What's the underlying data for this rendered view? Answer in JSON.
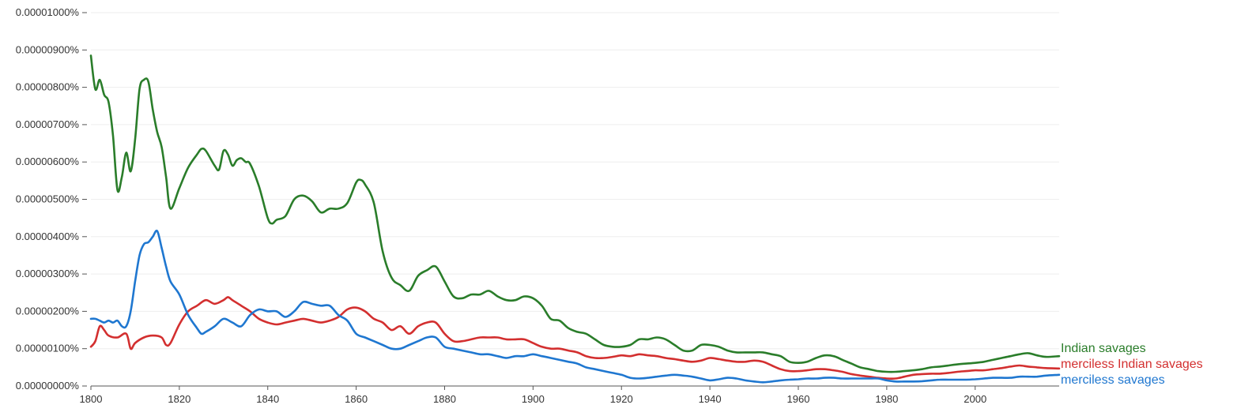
{
  "colors": {
    "indian_savages": "#2a7d2a",
    "merciless_indian_savages": "#d32f2f",
    "merciless_savages": "#1f77d0",
    "axis_text": "#333333",
    "grid": "#eeeeee"
  },
  "chart_data": {
    "type": "line",
    "title": "",
    "xlabel": "",
    "ylabel": "",
    "xlim": [
      1800,
      2019
    ],
    "ylim": [
      0,
      1e-05
    ],
    "grid": true,
    "legend": "right-end",
    "x_ticks": [
      "1800",
      "1820",
      "1840",
      "1860",
      "1880",
      "1900",
      "1920",
      "1940",
      "1960",
      "1980",
      "2000"
    ],
    "x_tick_values": [
      1800,
      1820,
      1840,
      1860,
      1880,
      1900,
      1920,
      1940,
      1960,
      1980,
      2000
    ],
    "y_ticks": [
      "0.00000000%",
      "0.00000100%",
      "0.00000200%",
      "0.00000300%",
      "0.00000400%",
      "0.00000500%",
      "0.00000600%",
      "0.00000700%",
      "0.00000800%",
      "0.00000900%",
      "0.00001000%"
    ],
    "y_tick_values": [
      0,
      1e-06,
      2e-06,
      3e-06,
      4e-06,
      5e-06,
      6e-06,
      7e-06,
      8e-06,
      9e-06,
      1e-05
    ],
    "series": [
      {
        "name": "Indian savages",
        "color": "#2a7d2a",
        "x": [
          1800,
          1801,
          1802,
          1803,
          1804,
          1805,
          1806,
          1807,
          1808,
          1809,
          1810,
          1811,
          1812,
          1813,
          1814,
          1815,
          1816,
          1817,
          1818,
          1820,
          1822,
          1824,
          1825,
          1826,
          1828,
          1829,
          1830,
          1831,
          1832,
          1833,
          1834,
          1835,
          1836,
          1838,
          1840,
          1841,
          1842,
          1844,
          1846,
          1848,
          1850,
          1852,
          1854,
          1856,
          1858,
          1860,
          1861,
          1862,
          1864,
          1866,
          1868,
          1870,
          1872,
          1874,
          1876,
          1878,
          1880,
          1882,
          1884,
          1886,
          1888,
          1890,
          1892,
          1894,
          1896,
          1898,
          1900,
          1902,
          1904,
          1906,
          1908,
          1910,
          1912,
          1914,
          1916,
          1918,
          1920,
          1922,
          1924,
          1926,
          1928,
          1930,
          1932,
          1934,
          1936,
          1938,
          1940,
          1942,
          1944,
          1946,
          1948,
          1950,
          1952,
          1954,
          1956,
          1958,
          1960,
          1962,
          1964,
          1966,
          1968,
          1970,
          1972,
          1974,
          1976,
          1978,
          1980,
          1982,
          1984,
          1986,
          1988,
          1990,
          1992,
          1994,
          1996,
          1998,
          2000,
          2002,
          2004,
          2006,
          2008,
          2010,
          2012,
          2014,
          2016,
          2019
        ],
        "y": [
          8.85e-06,
          7.95e-06,
          8.2e-06,
          7.8e-06,
          7.6e-06,
          6.7e-06,
          5.25e-06,
          5.6e-06,
          6.25e-06,
          5.75e-06,
          6.6e-06,
          7.95e-06,
          8.2e-06,
          8.15e-06,
          7.4e-06,
          6.8e-06,
          6.4e-06,
          5.6e-06,
          4.75e-06,
          5.3e-06,
          5.85e-06,
          6.2e-06,
          6.35e-06,
          6.3e-06,
          5.9e-06,
          5.8e-06,
          6.3e-06,
          6.2e-06,
          5.9e-06,
          6.05e-06,
          6.1e-06,
          6e-06,
          5.95e-06,
          5.35e-06,
          4.5e-06,
          4.35e-06,
          4.45e-06,
          4.55e-06,
          5e-06,
          5.1e-06,
          4.95e-06,
          4.65e-06,
          4.75e-06,
          4.75e-06,
          4.9e-06,
          5.45e-06,
          5.52e-06,
          5.4e-06,
          4.9e-06,
          3.6e-06,
          2.9e-06,
          2.7e-06,
          2.55e-06,
          2.95e-06,
          3.1e-06,
          3.2e-06,
          2.8e-06,
          2.4e-06,
          2.35e-06,
          2.45e-06,
          2.45e-06,
          2.55e-06,
          2.4e-06,
          2.3e-06,
          2.3e-06,
          2.4e-06,
          2.35e-06,
          2.15e-06,
          1.8e-06,
          1.75e-06,
          1.55e-06,
          1.45e-06,
          1.4e-06,
          1.25e-06,
          1.1e-06,
          1.05e-06,
          1.05e-06,
          1.1e-06,
          1.25e-06,
          1.25e-06,
          1.3e-06,
          1.25e-06,
          1.1e-06,
          9.5e-07,
          9.5e-07,
          1.1e-06,
          1.1e-06,
          1.05e-06,
          9.5e-07,
          9e-07,
          9e-07,
          9e-07,
          9e-07,
          8.5e-07,
          8e-07,
          6.5e-07,
          6.2e-07,
          6.5e-07,
          7.5e-07,
          8.2e-07,
          8e-07,
          7e-07,
          6e-07,
          5e-07,
          4.5e-07,
          4e-07,
          3.8e-07,
          3.8e-07,
          4e-07,
          4.2e-07,
          4.5e-07,
          5e-07,
          5.2e-07,
          5.5e-07,
          5.8e-07,
          6e-07,
          6.2e-07,
          6.5e-07,
          7e-07,
          7.5e-07,
          8e-07,
          8.5e-07,
          8.8e-07,
          8.2e-07,
          7.8e-07,
          8e-07
        ]
      },
      {
        "name": "merciless Indian savages",
        "color": "#d32f2f",
        "x": [
          1800,
          1801,
          1802,
          1803,
          1804,
          1806,
          1808,
          1809,
          1810,
          1812,
          1814,
          1816,
          1817,
          1818,
          1820,
          1822,
          1824,
          1826,
          1828,
          1830,
          1831,
          1832,
          1834,
          1836,
          1838,
          1840,
          1842,
          1844,
          1846,
          1848,
          1850,
          1852,
          1854,
          1856,
          1858,
          1860,
          1862,
          1864,
          1866,
          1868,
          1870,
          1872,
          1874,
          1876,
          1878,
          1880,
          1882,
          1884,
          1886,
          1888,
          1890,
          1892,
          1894,
          1896,
          1898,
          1900,
          1902,
          1904,
          1906,
          1908,
          1910,
          1912,
          1914,
          1916,
          1918,
          1920,
          1922,
          1924,
          1926,
          1928,
          1930,
          1932,
          1934,
          1936,
          1938,
          1940,
          1942,
          1944,
          1946,
          1948,
          1950,
          1952,
          1954,
          1956,
          1958,
          1960,
          1962,
          1964,
          1966,
          1968,
          1970,
          1972,
          1974,
          1976,
          1978,
          1980,
          1982,
          1984,
          1986,
          1988,
          1990,
          1992,
          1994,
          1996,
          1998,
          2000,
          2002,
          2004,
          2006,
          2008,
          2010,
          2012,
          2014,
          2016,
          2019
        ],
        "y": [
          1.05e-06,
          1.2e-06,
          1.6e-06,
          1.5e-06,
          1.35e-06,
          1.3e-06,
          1.4e-06,
          1e-06,
          1.15e-06,
          1.3e-06,
          1.35e-06,
          1.3e-06,
          1.1e-06,
          1.15e-06,
          1.65e-06,
          2e-06,
          2.15e-06,
          2.3e-06,
          2.2e-06,
          2.3e-06,
          2.38e-06,
          2.3e-06,
          2.15e-06,
          2e-06,
          1.8e-06,
          1.7e-06,
          1.65e-06,
          1.7e-06,
          1.75e-06,
          1.8e-06,
          1.75e-06,
          1.7e-06,
          1.75e-06,
          1.85e-06,
          2.05e-06,
          2.1e-06,
          2e-06,
          1.8e-06,
          1.7e-06,
          1.5e-06,
          1.6e-06,
          1.4e-06,
          1.6e-06,
          1.7e-06,
          1.7e-06,
          1.4e-06,
          1.2e-06,
          1.2e-06,
          1.25e-06,
          1.3e-06,
          1.3e-06,
          1.3e-06,
          1.25e-06,
          1.25e-06,
          1.25e-06,
          1.15e-06,
          1.05e-06,
          1e-06,
          1e-06,
          9.5e-07,
          9e-07,
          8e-07,
          7.5e-07,
          7.5e-07,
          7.8e-07,
          8.2e-07,
          8e-07,
          8.5e-07,
          8.2e-07,
          8e-07,
          7.5e-07,
          7.2e-07,
          6.8e-07,
          6.5e-07,
          6.8e-07,
          7.5e-07,
          7.2e-07,
          6.8e-07,
          6.5e-07,
          6.5e-07,
          6.8e-07,
          6.5e-07,
          5.5e-07,
          4.5e-07,
          4e-07,
          4e-07,
          4.2e-07,
          4.5e-07,
          4.5e-07,
          4.2e-07,
          3.8e-07,
          3.2e-07,
          2.8e-07,
          2.5e-07,
          2.2e-07,
          2e-07,
          2e-07,
          2.5e-07,
          3e-07,
          3.2e-07,
          3.3e-07,
          3.3e-07,
          3.5e-07,
          3.8e-07,
          4e-07,
          4.2e-07,
          4.2e-07,
          4.5e-07,
          4.8e-07,
          5.2e-07,
          5.5e-07,
          5.2e-07,
          5e-07,
          4.8e-07,
          4.7e-07
        ]
      },
      {
        "name": "merciless savages",
        "color": "#1f77d0",
        "x": [
          1800,
          1801,
          1802,
          1803,
          1804,
          1805,
          1806,
          1807,
          1808,
          1809,
          1810,
          1811,
          1812,
          1813,
          1814,
          1815,
          1816,
          1817,
          1818,
          1820,
          1822,
          1824,
          1825,
          1826,
          1828,
          1830,
          1832,
          1834,
          1836,
          1838,
          1840,
          1842,
          1844,
          1846,
          1848,
          1850,
          1852,
          1854,
          1856,
          1858,
          1860,
          1862,
          1864,
          1866,
          1868,
          1870,
          1872,
          1874,
          1876,
          1878,
          1880,
          1882,
          1884,
          1886,
          1888,
          1890,
          1892,
          1894,
          1896,
          1898,
          1900,
          1902,
          1904,
          1906,
          1908,
          1910,
          1912,
          1914,
          1916,
          1918,
          1920,
          1922,
          1924,
          1926,
          1928,
          1930,
          1932,
          1934,
          1936,
          1938,
          1940,
          1942,
          1944,
          1946,
          1948,
          1950,
          1952,
          1954,
          1956,
          1958,
          1960,
          1962,
          1964,
          1966,
          1968,
          1970,
          1972,
          1974,
          1976,
          1978,
          1980,
          1982,
          1984,
          1986,
          1988,
          1990,
          1992,
          1994,
          1996,
          1998,
          2000,
          2002,
          2004,
          2006,
          2008,
          2010,
          2012,
          2014,
          2016,
          2019
        ],
        "y": [
          1.8e-06,
          1.8e-06,
          1.75e-06,
          1.7e-06,
          1.75e-06,
          1.7e-06,
          1.75e-06,
          1.6e-06,
          1.6e-06,
          2e-06,
          2.8e-06,
          3.5e-06,
          3.8e-06,
          3.85e-06,
          4e-06,
          4.15e-06,
          3.7e-06,
          3.2e-06,
          2.8e-06,
          2.45e-06,
          1.9e-06,
          1.55e-06,
          1.4e-06,
          1.45e-06,
          1.6e-06,
          1.8e-06,
          1.7e-06,
          1.6e-06,
          1.9e-06,
          2.05e-06,
          2e-06,
          2e-06,
          1.85e-06,
          2e-06,
          2.25e-06,
          2.2e-06,
          2.15e-06,
          2.15e-06,
          1.9e-06,
          1.75e-06,
          1.4e-06,
          1.3e-06,
          1.2e-06,
          1.1e-06,
          1e-06,
          1e-06,
          1.1e-06,
          1.2e-06,
          1.3e-06,
          1.3e-06,
          1.05e-06,
          1e-06,
          9.5e-07,
          9e-07,
          8.5e-07,
          8.5e-07,
          8e-07,
          7.5e-07,
          8e-07,
          8e-07,
          8.5e-07,
          8e-07,
          7.5e-07,
          7e-07,
          6.5e-07,
          6e-07,
          5e-07,
          4.5e-07,
          4e-07,
          3.5e-07,
          3e-07,
          2.2e-07,
          2e-07,
          2.2e-07,
          2.5e-07,
          2.8e-07,
          3e-07,
          2.8e-07,
          2.5e-07,
          2e-07,
          1.5e-07,
          1.8e-07,
          2.2e-07,
          2e-07,
          1.5e-07,
          1.2e-07,
          1e-07,
          1.2e-07,
          1.5e-07,
          1.7e-07,
          1.8e-07,
          2e-07,
          2e-07,
          2.2e-07,
          2.2e-07,
          2e-07,
          2e-07,
          2e-07,
          2e-07,
          2e-07,
          1.5e-07,
          1.2e-07,
          1.2e-07,
          1.2e-07,
          1.3e-07,
          1.5e-07,
          1.7e-07,
          1.7e-07,
          1.7e-07,
          1.7e-07,
          1.8e-07,
          2e-07,
          2.2e-07,
          2.2e-07,
          2.2e-07,
          2.5e-07,
          2.5e-07,
          2.5e-07,
          2.8e-07,
          3e-07
        ]
      }
    ]
  }
}
